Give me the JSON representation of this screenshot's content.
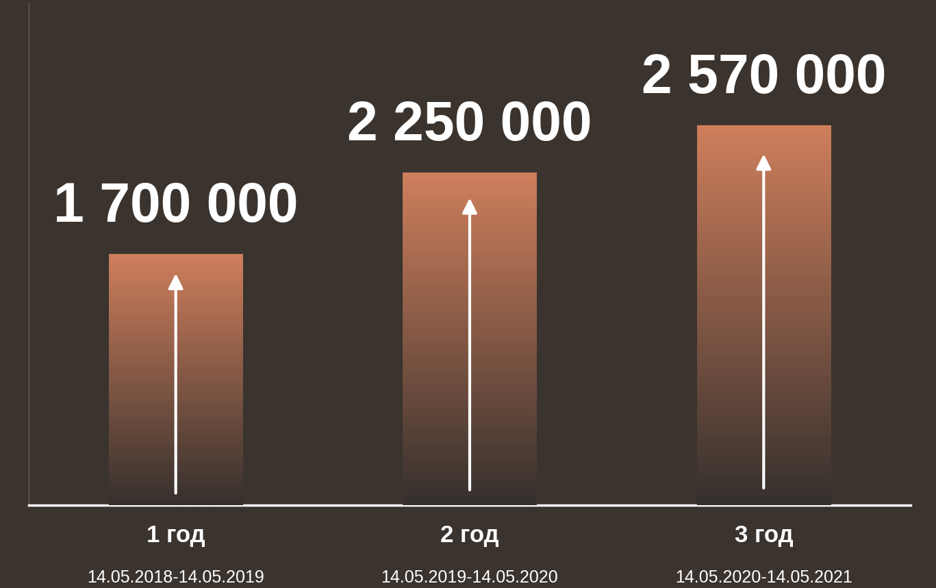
{
  "chart_data": {
    "type": "bar",
    "categories": [
      "1 год",
      "2 год",
      "3 год"
    ],
    "periods": [
      "14.05.2018-14.05.2019",
      "14.05.2019-14.05.2020",
      "14.05.2020-14.05.2021"
    ],
    "values": [
      1700000,
      2250000,
      2570000
    ],
    "value_labels": [
      "1 700 000",
      "2 250 000",
      "2 570 000"
    ],
    "data_labels": true,
    "color": "#cf7f5c",
    "ylim": [
      0,
      3400000
    ],
    "tick_labels": "x",
    "grid": false
  }
}
